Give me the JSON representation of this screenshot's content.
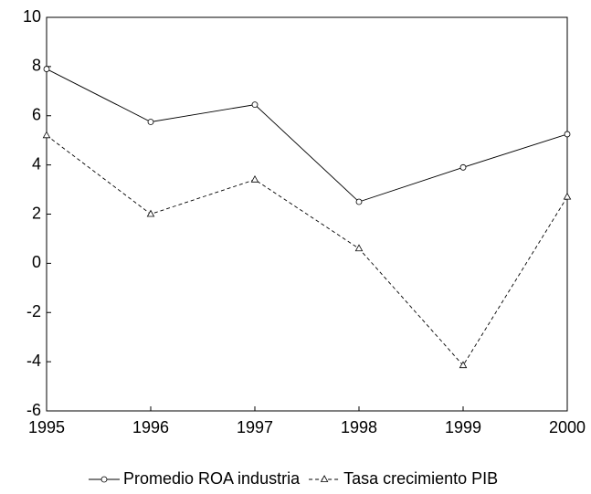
{
  "chart_data": {
    "type": "line",
    "x": [
      1995,
      1996,
      1997,
      1998,
      1999,
      2000
    ],
    "xlim": [
      1995,
      2000
    ],
    "xticks": [
      1995,
      1996,
      1997,
      1998,
      1999,
      2000
    ],
    "ylim": [
      -6,
      10
    ],
    "yticks": [
      -6,
      -4,
      -2,
      0,
      2,
      4,
      6,
      8,
      10
    ],
    "grid": false,
    "legend": "bottom",
    "series": [
      {
        "name": "Promedio ROA industria",
        "color": "#000000",
        "dash": false,
        "marker": "circle",
        "values": [
          7.9,
          5.75,
          6.45,
          2.5,
          3.9,
          5.25
        ]
      },
      {
        "name": "Tasa crecimiento PIB",
        "color": "#000000",
        "dash": true,
        "marker": "triangle",
        "values": [
          5.2,
          2.0,
          3.4,
          0.6,
          -4.15,
          2.7
        ]
      }
    ]
  }
}
